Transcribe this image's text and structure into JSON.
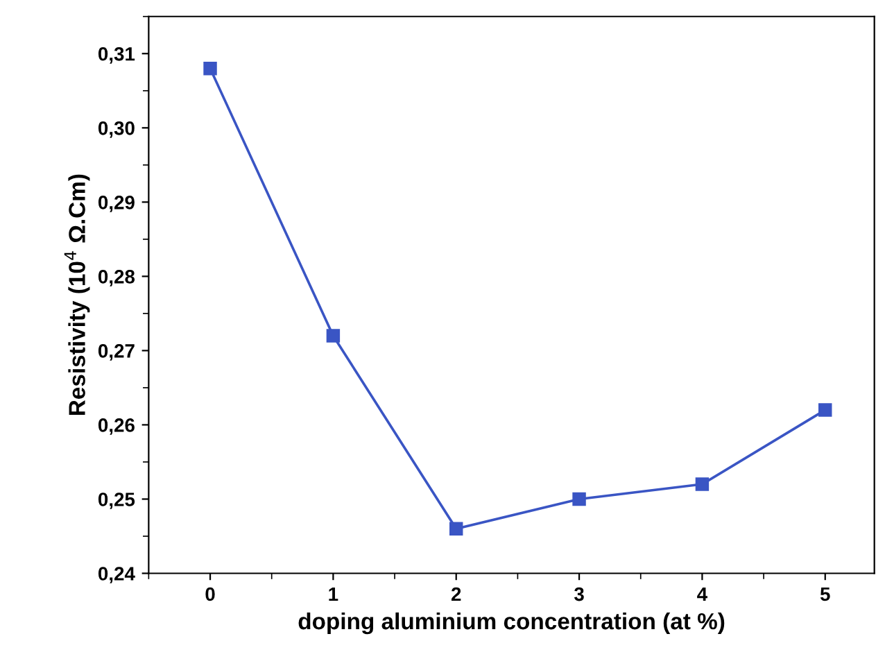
{
  "chart_data": {
    "type": "line",
    "xlabel": "doping aluminium concentration (at %)",
    "ylabel": "Resistivity (10$^{4}$ Ω.Cm)",
    "x": [
      0,
      1,
      2,
      3,
      4,
      5
    ],
    "series": [
      {
        "color": "#3a55c4",
        "values": [
          0.308,
          0.272,
          0.246,
          0.25,
          0.252,
          0.262
        ]
      }
    ],
    "marker": "square",
    "line_style": "solid",
    "grid": false,
    "xlim": [
      -0.5,
      5.4
    ],
    "xticks": [
      0,
      1,
      2,
      3,
      4,
      5
    ],
    "ylim": [
      0.24,
      0.315
    ],
    "yticks": [
      {
        "value": 0.24,
        "label": "0,24"
      },
      {
        "value": 0.25,
        "label": "0,25"
      },
      {
        "value": 0.26,
        "label": "0,26"
      },
      {
        "value": 0.27,
        "label": "0,27"
      },
      {
        "value": 0.28,
        "label": "0,28"
      },
      {
        "value": 0.29,
        "label": "0,29"
      },
      {
        "value": 0.3,
        "label": "0,30"
      },
      {
        "value": 0.31,
        "label": "0,31"
      }
    ]
  }
}
